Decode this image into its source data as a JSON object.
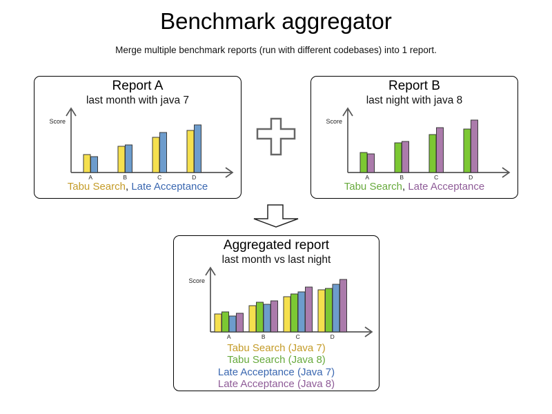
{
  "page": {
    "title": "Benchmark aggregator",
    "subtitle": "Merge multiple benchmark reports (run with different codebases) into 1 report."
  },
  "chart_data": [
    {
      "id": "report_a",
      "type": "bar",
      "title": "Report A",
      "subtitle": "last month with java 7",
      "ylabel": "Score",
      "categories": [
        "A",
        "B",
        "C",
        "D"
      ],
      "ylim": [
        0,
        90
      ],
      "legend_separator": ", ",
      "legend_position": "bottom",
      "grid": false,
      "series": [
        {
          "name": "Tabu Search",
          "values": [
            26,
            38,
            51,
            61
          ],
          "bar_color": "#F5E04E",
          "text_color": "#C49B27"
        },
        {
          "name": "Late Acceptance",
          "values": [
            23,
            40,
            58,
            69
          ],
          "bar_color": "#6D9CCC",
          "text_color": "#3A67B0"
        }
      ]
    },
    {
      "id": "report_b",
      "type": "bar",
      "title": "Report B",
      "subtitle": "last night with java 8",
      "ylabel": "Score",
      "categories": [
        "A",
        "B",
        "C",
        "D"
      ],
      "ylim": [
        0,
        90
      ],
      "legend_separator": ", ",
      "legend_position": "bottom",
      "grid": false,
      "series": [
        {
          "name": "Tabu Search",
          "values": [
            29,
            43,
            55,
            63
          ],
          "bar_color": "#7CC833",
          "text_color": "#67A93C"
        },
        {
          "name": "Late Acceptance",
          "values": [
            27,
            45,
            65,
            76
          ],
          "bar_color": "#AB7BAB",
          "text_color": "#8E5B97"
        }
      ]
    },
    {
      "id": "aggregated",
      "type": "bar",
      "title": "Aggregated report",
      "subtitle": "last month vs last night",
      "ylabel": "Score",
      "categories": [
        "A",
        "B",
        "C",
        "D"
      ],
      "ylim": [
        0,
        90
      ],
      "legend_position": "bottom",
      "grid": false,
      "series": [
        {
          "name": "Tabu Search (Java 7)",
          "values": [
            26,
            38,
            51,
            61
          ],
          "bar_color": "#F5E04E",
          "text_color": "#C49B27"
        },
        {
          "name": "Tabu Search (Java 8)",
          "values": [
            29,
            43,
            55,
            63
          ],
          "bar_color": "#7CC833",
          "text_color": "#67A93C"
        },
        {
          "name": "Late Acceptance (Java 7)",
          "values": [
            23,
            40,
            58,
            69
          ],
          "bar_color": "#6D9CCC",
          "text_color": "#3A67B0"
        },
        {
          "name": "Late Acceptance (Java 8)",
          "values": [
            27,
            45,
            65,
            76
          ],
          "bar_color": "#AB7BAB",
          "text_color": "#8E5B97"
        }
      ]
    }
  ]
}
